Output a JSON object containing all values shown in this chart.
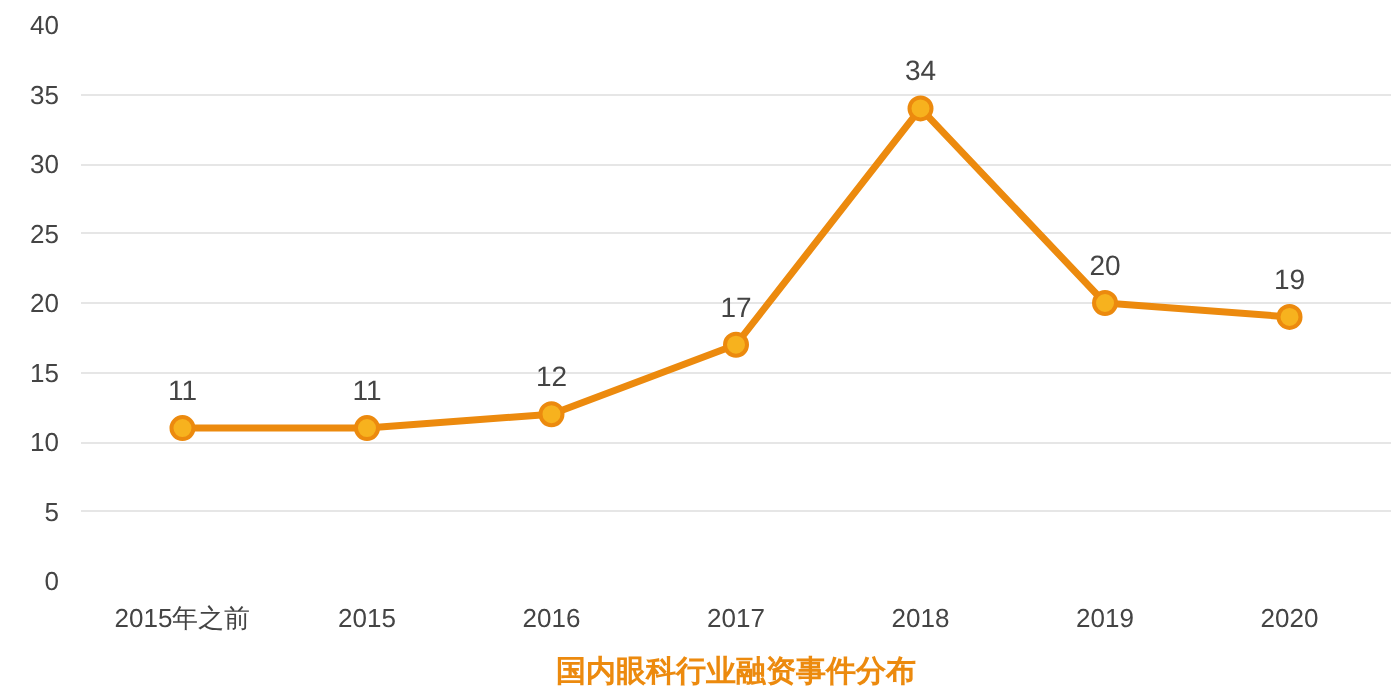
{
  "chart_data": {
    "type": "line",
    "title": "国内眼科行业融资事件分布",
    "categories": [
      "2015年之前",
      "2015",
      "2016",
      "2017",
      "2018",
      "2019",
      "2020"
    ],
    "series": [
      {
        "color": "#ec8a0e",
        "values": [
          11,
          11,
          12,
          17,
          34,
          20,
          19
        ]
      }
    ],
    "ylim": [
      0,
      40
    ],
    "yticks": [
      0,
      5,
      10,
      15,
      20,
      25,
      30,
      35,
      40
    ],
    "grid": "y",
    "marker": "circle",
    "line_style": "solid",
    "data_labels": true
  }
}
